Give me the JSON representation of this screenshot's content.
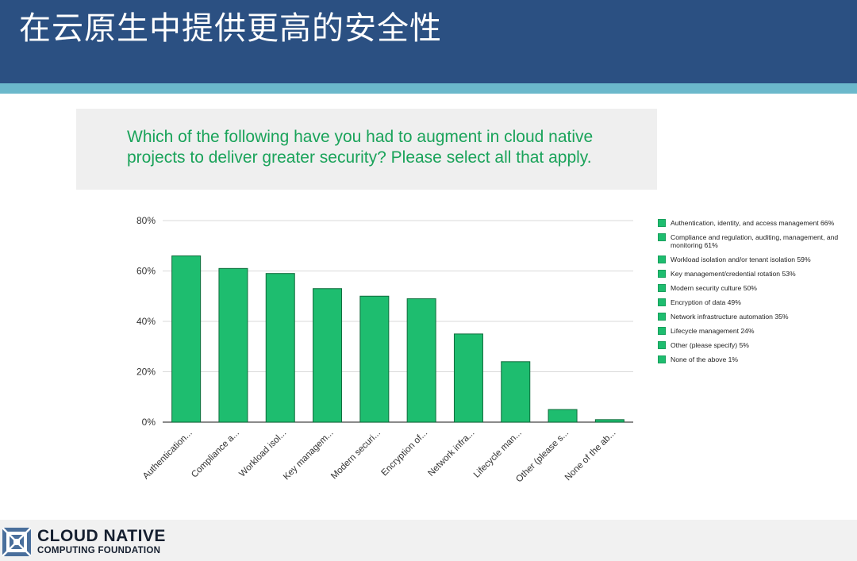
{
  "header": {
    "title": "在云原生中提供更高的安全性"
  },
  "question": {
    "text": "Which of the following have you had to augment in cloud native projects to deliver greater security? Please select all that apply."
  },
  "colors": {
    "bar": "#1ebd6f",
    "bar_stroke": "#0f6b3b",
    "header": "#2b5082",
    "stripe": "#6bb8cb",
    "question_text": "#1aa35a"
  },
  "chart_data": {
    "type": "bar",
    "categories": [
      "Authentication...",
      "Compliance a...",
      "Workload isol...",
      "Key managem...",
      "Modern securi...",
      "Encryption of...",
      "Network infra...",
      "Lifecycle man...",
      "Other (please s...",
      "None of the ab..."
    ],
    "values": [
      66,
      61,
      59,
      53,
      50,
      49,
      35,
      24,
      5,
      1
    ],
    "ylim": [
      0,
      80
    ],
    "yticks": [
      0,
      20,
      40,
      60,
      80
    ],
    "ytick_labels": [
      "0%",
      "20%",
      "40%",
      "60%",
      "80%"
    ],
    "grid": true,
    "legend_position": "right",
    "legend": [
      "Authentication, identity, and access management 66%",
      "Compliance and regulation, auditing, management, and monitoring 61%",
      "Workload isolation and/or tenant isolation 59%",
      "Key management/credential rotation 53%",
      "Modern security culture 50%",
      "Encryption of data 49%",
      "Network infrastructure automation 35%",
      "Lifecycle management 24%",
      "Other (please specify) 5%",
      "None of the above 1%"
    ]
  },
  "footer": {
    "logo_line1": "CLOUD NATIVE",
    "logo_line2": "COMPUTING FOUNDATION",
    "logo_icon": "cncf-logo-icon"
  }
}
